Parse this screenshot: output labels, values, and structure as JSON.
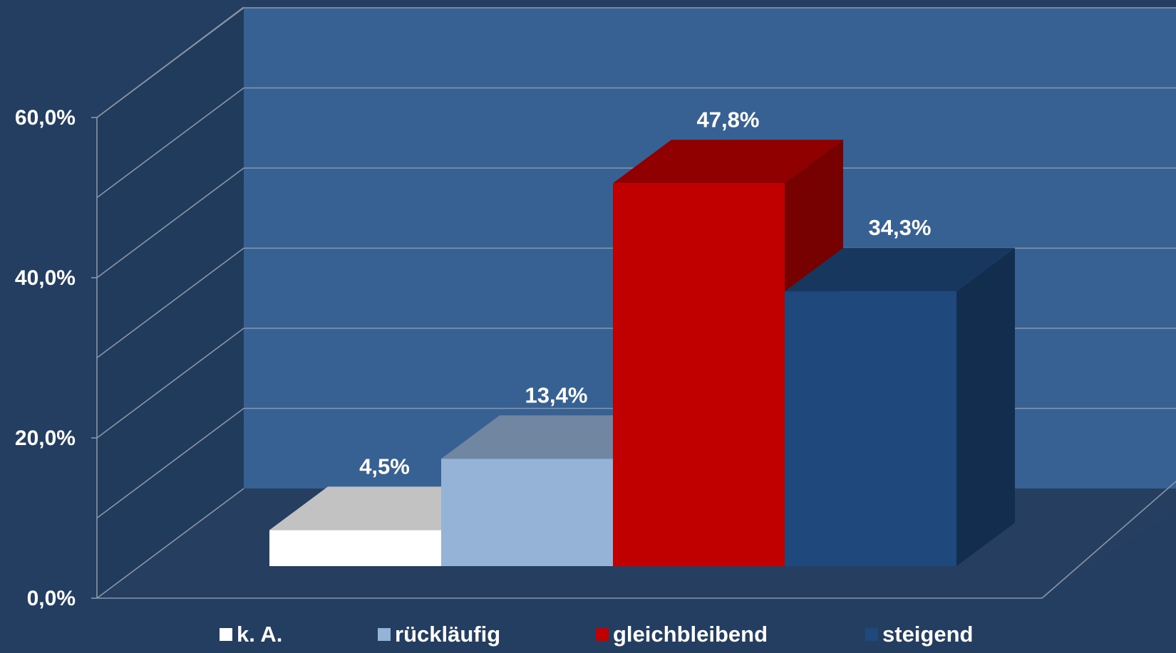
{
  "chart_data": {
    "type": "bar",
    "categories": [
      "k. A.",
      "rückläufig",
      "gleichbleibend",
      "steigend"
    ],
    "values": [
      4.5,
      13.4,
      47.8,
      34.3
    ],
    "value_labels": [
      "4,5%",
      "13,4%",
      "47,8%",
      "34,3%"
    ],
    "colors": [
      "#ffffff",
      "#95b3d7",
      "#c00000",
      "#1f497d"
    ],
    "y_ticks": [
      0,
      20,
      40,
      60
    ],
    "y_tick_labels": [
      "0,0%",
      "20,0%",
      "40,0%",
      "60,0%"
    ],
    "ylim": [
      0,
      60
    ],
    "grid": true,
    "legend_position": "bottom",
    "style": "3d-column"
  }
}
